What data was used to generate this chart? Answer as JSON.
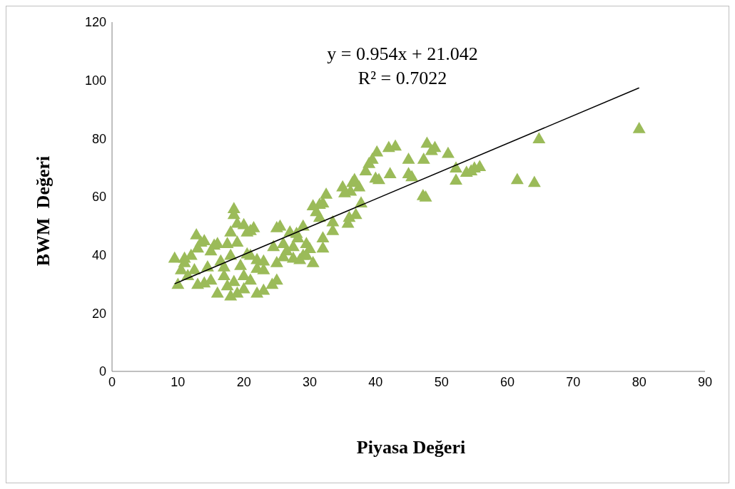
{
  "chart_data": {
    "type": "scatter",
    "xlabel": "Piyasa Değeri",
    "ylabel": "BWM  Değeri",
    "xlim": [
      0,
      90
    ],
    "xticks": [
      0,
      10,
      20,
      30,
      40,
      50,
      60,
      70,
      80,
      90
    ],
    "ylim": [
      0,
      120
    ],
    "yticks": [
      0,
      20,
      40,
      60,
      80,
      100,
      120
    ],
    "marker": "triangle",
    "annotations": [
      "y = 0.954x + 21.042",
      "R² = 0.7022"
    ],
    "series": [
      {
        "color": "#9bbb59",
        "x": [
          80,
          64.8,
          61.5,
          64.1,
          52.2,
          52.2,
          53.8,
          54.5,
          55,
          55.8,
          51,
          48.5,
          49,
          47.8,
          45,
          45,
          45.5,
          47.3,
          47.2,
          47.6,
          43,
          42,
          42.2,
          40.2,
          39.5,
          39,
          38.5,
          40.5,
          40,
          37.5,
          37.8,
          36.8,
          36.5,
          36.2,
          35,
          35.3,
          37,
          36,
          35.8,
          33.5,
          33.5,
          32.5,
          32,
          31.5,
          30.5,
          31,
          31.5,
          32,
          32,
          30,
          30.5,
          29,
          29.5,
          29,
          28,
          27,
          28.2,
          27.5,
          26,
          26.5,
          25.5,
          25,
          24.5,
          25,
          25,
          24.3,
          23,
          22,
          23,
          23,
          22,
          21.5,
          21,
          20.5,
          20,
          19,
          18.5,
          18.5,
          19,
          18,
          17.5,
          18,
          17,
          17.5,
          18,
          19,
          20,
          21,
          20,
          19.5,
          20.5,
          21,
          16,
          16,
          15.5,
          15,
          16.5,
          14,
          15,
          14,
          13.5,
          13,
          12.8,
          12,
          11,
          11,
          12.5,
          13,
          10.5,
          10,
          9.5,
          11.5,
          14.5,
          22,
          26,
          27.5,
          28.5,
          29.5,
          18.5,
          17
        ],
        "values": [
          83.5,
          80,
          66,
          65,
          70,
          65.8,
          68.5,
          69,
          70,
          70.5,
          75,
          76,
          77,
          78.5,
          73,
          68,
          67,
          73,
          60.5,
          60,
          77.5,
          77,
          68,
          75.5,
          73,
          71.5,
          69,
          66,
          66.5,
          63.5,
          58,
          66,
          65,
          62,
          63.5,
          61.5,
          54,
          53,
          51,
          51.5,
          48.5,
          61,
          58,
          57.5,
          57,
          55,
          53,
          46,
          42.5,
          42.3,
          37.5,
          50,
          44,
          40,
          47.5,
          48,
          46,
          43,
          44,
          41.5,
          50,
          49.5,
          43,
          37.5,
          31.5,
          30,
          28,
          27,
          35,
          38,
          38.5,
          49.5,
          48.5,
          48,
          50.5,
          51,
          56,
          54,
          44.5,
          48,
          44,
          40,
          36,
          29.5,
          26,
          27,
          28.5,
          31.5,
          33,
          36.5,
          40.5,
          40,
          27,
          44,
          43.5,
          41.5,
          38,
          30.5,
          31.5,
          45,
          44.5,
          42.5,
          47,
          40,
          39,
          37.5,
          35,
          30,
          35,
          30,
          39,
          33,
          36,
          35.5,
          39.5,
          39,
          38.5,
          40,
          31,
          33
        ]
      },
      {
        "type": "line",
        "marker": "none",
        "color": "#000000",
        "x": [
          9.5,
          80
        ],
        "values": [
          30.1,
          97.4
        ]
      }
    ]
  }
}
